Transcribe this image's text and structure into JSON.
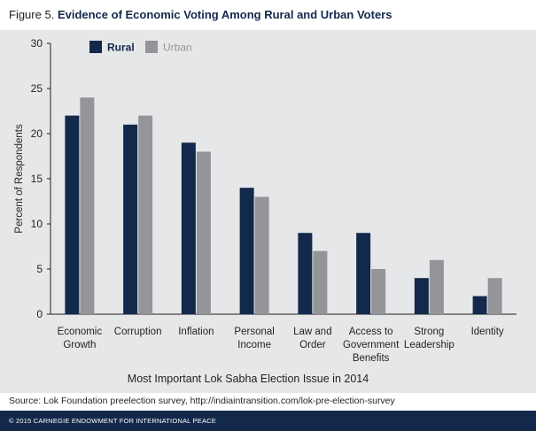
{
  "title": {
    "figure_label": "Figure 5.",
    "main": "Evidence of Economic Voting Among Rural and Urban Voters"
  },
  "source": "Source: Lok Foundation preelection survey, http://indiaintransition.com/lok-pre-election-survey",
  "footer": "© 2015 CARNEGIE ENDOWMENT FOR INTERNATIONAL PEACE",
  "colors": {
    "rural": "#13294b",
    "urban": "#939598",
    "background": "#e6e7e8",
    "footer": "#13294b"
  },
  "chart_data": {
    "type": "bar",
    "xlabel": "Most Important Lok Sabha Election Issue in 2014",
    "ylabel": "Percent of Respondents",
    "ylim": [
      0,
      30
    ],
    "yticks": [
      0,
      5,
      10,
      15,
      20,
      25,
      30
    ],
    "legend_position": "top-left",
    "grid": false,
    "categories": [
      [
        "Economic",
        "Growth"
      ],
      [
        "Corruption"
      ],
      [
        "Inflation"
      ],
      [
        "Personal",
        "Income"
      ],
      [
        "Law and",
        "Order"
      ],
      [
        "Access to",
        "Government",
        "Benefits"
      ],
      [
        "Strong",
        "Leadership"
      ],
      [
        "Identity"
      ]
    ],
    "series": [
      {
        "name": "Rural",
        "color": "#13294b",
        "values": [
          22,
          21,
          19,
          14,
          9,
          9,
          4,
          2
        ]
      },
      {
        "name": "Urban",
        "color": "#939598",
        "values": [
          24,
          22,
          18,
          13,
          7,
          5,
          6,
          4
        ]
      }
    ]
  }
}
